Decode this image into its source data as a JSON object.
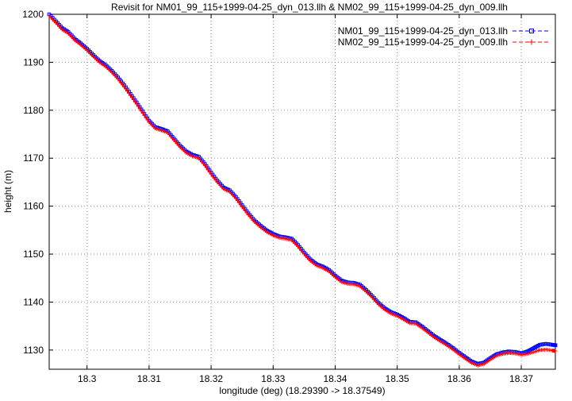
{
  "chart_data": {
    "type": "line",
    "title": "Revisit for NM01_99_115+1999-04-25_dyn_013.llh & NM02_99_115+1999-04-25_dyn_009.llh",
    "xlabel": "longitude (deg) (18.29390 -> 18.37549)",
    "ylabel": "height (m)",
    "xlim": [
      18.2939,
      18.37549
    ],
    "ylim": [
      1126,
      1200
    ],
    "grid": true,
    "legend_position": "top-right-inside",
    "x_ticks": {
      "values": [
        18.3,
        18.31,
        18.32,
        18.33,
        18.34,
        18.35,
        18.36,
        18.37
      ],
      "labels": [
        "18.3",
        "18.31",
        "18.32",
        "18.33",
        "18.34",
        "18.35",
        "18.36",
        "18.37"
      ]
    },
    "y_ticks": {
      "values": [
        1130,
        1140,
        1150,
        1160,
        1170,
        1180,
        1190,
        1200
      ],
      "labels": [
        "1130",
        "1140",
        "1150",
        "1160",
        "1170",
        "1180",
        "1190",
        "1200"
      ]
    },
    "x": [
      18.2939,
      18.295,
      18.296,
      18.297,
      18.298,
      18.299,
      18.3,
      18.301,
      18.302,
      18.303,
      18.304,
      18.305,
      18.306,
      18.307,
      18.308,
      18.309,
      18.31,
      18.311,
      18.312,
      18.313,
      18.314,
      18.315,
      18.316,
      18.317,
      18.318,
      18.319,
      18.32,
      18.321,
      18.322,
      18.323,
      18.324,
      18.325,
      18.326,
      18.327,
      18.328,
      18.329,
      18.33,
      18.331,
      18.332,
      18.333,
      18.334,
      18.335,
      18.336,
      18.337,
      18.338,
      18.339,
      18.34,
      18.341,
      18.342,
      18.343,
      18.344,
      18.345,
      18.346,
      18.347,
      18.348,
      18.349,
      18.35,
      18.351,
      18.352,
      18.353,
      18.354,
      18.355,
      18.356,
      18.357,
      18.358,
      18.359,
      18.36,
      18.361,
      18.362,
      18.363,
      18.364,
      18.365,
      18.366,
      18.367,
      18.368,
      18.369,
      18.37,
      18.371,
      18.372,
      18.373,
      18.374,
      18.375,
      18.3755
    ],
    "series": [
      {
        "name": "NM01_99_115+1999-04-25_dyn_013.llh",
        "color": "#0000ff",
        "marker": "square",
        "values": [
          1200.0,
          1198.5,
          1197.1,
          1196.3,
          1194.9,
          1193.9,
          1192.8,
          1191.5,
          1190.3,
          1189.4,
          1188.2,
          1186.8,
          1185.2,
          1183.4,
          1181.6,
          1179.7,
          1177.8,
          1176.5,
          1176.1,
          1175.6,
          1174.1,
          1172.6,
          1171.4,
          1170.7,
          1170.3,
          1168.8,
          1167.0,
          1165.3,
          1163.9,
          1163.3,
          1161.9,
          1160.2,
          1158.5,
          1157.0,
          1155.9,
          1154.9,
          1154.2,
          1153.7,
          1153.5,
          1153.2,
          1151.9,
          1150.3,
          1148.9,
          1147.9,
          1147.4,
          1146.7,
          1145.5,
          1144.5,
          1144.1,
          1144.0,
          1143.6,
          1142.5,
          1141.2,
          1139.8,
          1138.7,
          1137.9,
          1137.4,
          1136.7,
          1135.9,
          1135.8,
          1134.9,
          1133.9,
          1132.9,
          1132.1,
          1131.3,
          1130.4,
          1129.4,
          1128.5,
          1127.6,
          1127.1,
          1127.4,
          1128.3,
          1129.1,
          1129.5,
          1129.7,
          1129.6,
          1129.3,
          1129.7,
          1130.4,
          1131.1,
          1131.3,
          1131.1,
          1131.0
        ]
      },
      {
        "name": "NM02_99_115+1999-04-25_dyn_009.llh",
        "color": "#ff0000",
        "marker": "plus",
        "values": [
          1199.7,
          1198.2,
          1196.8,
          1196.0,
          1194.6,
          1193.6,
          1192.5,
          1191.2,
          1190.0,
          1189.1,
          1187.9,
          1186.5,
          1184.9,
          1183.1,
          1181.3,
          1179.4,
          1177.5,
          1176.2,
          1175.8,
          1175.3,
          1173.8,
          1172.3,
          1171.1,
          1170.4,
          1170.0,
          1168.5,
          1166.7,
          1165.0,
          1163.6,
          1163.0,
          1161.6,
          1159.9,
          1158.2,
          1156.7,
          1155.6,
          1154.6,
          1153.9,
          1153.4,
          1153.2,
          1152.9,
          1151.6,
          1150.0,
          1148.6,
          1147.6,
          1147.1,
          1146.4,
          1145.2,
          1144.2,
          1143.8,
          1143.7,
          1143.3,
          1142.2,
          1140.9,
          1139.5,
          1138.4,
          1137.6,
          1137.1,
          1136.4,
          1135.6,
          1135.5,
          1134.6,
          1133.6,
          1132.6,
          1131.8,
          1131.0,
          1130.1,
          1129.1,
          1128.2,
          1127.3,
          1126.8,
          1127.1,
          1128.0,
          1128.8,
          1129.2,
          1129.4,
          1129.3,
          1129.0,
          1129.2,
          1129.6,
          1130.0,
          1130.1,
          1129.9,
          1129.8
        ]
      }
    ]
  }
}
